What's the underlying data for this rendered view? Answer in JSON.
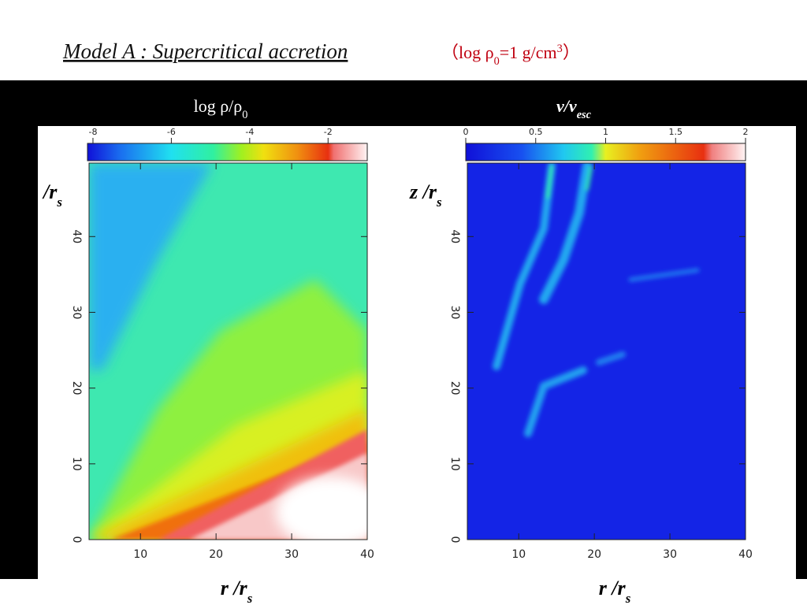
{
  "title": {
    "text": "Model  A : Supercritical accretion",
    "note": [
      "（log ρ",
      "0",
      "=1 g/cm",
      "3",
      "）"
    ]
  },
  "panels": [
    {
      "label": [
        "log ρ/ρ",
        "0"
      ],
      "colorbar": {
        "lim": [
          -8.14,
          -1.0
        ],
        "ticks": [
          -8,
          -6,
          -4,
          -2
        ]
      },
      "ylabel": [
        "/r",
        "s"
      ],
      "xlabel": [
        "r /r",
        "s"
      ],
      "xlim": [
        3.2,
        40
      ],
      "ylim": [
        0,
        49.7
      ],
      "xticks": [
        10,
        20,
        30,
        40
      ],
      "yticks": [
        0,
        10,
        20,
        30,
        40
      ]
    },
    {
      "label": [
        "v/v",
        "esc"
      ],
      "colorbar": {
        "lim": [
          0,
          2
        ],
        "ticks": [
          0,
          0.5,
          1,
          1.5,
          2
        ]
      },
      "ylabel": [
        "z /r",
        "s"
      ],
      "xlabel": [
        "r /r",
        "s"
      ],
      "xlim": [
        3.2,
        40
      ],
      "ylim": [
        0,
        49.7
      ],
      "xticks": [
        10,
        20,
        30,
        40
      ],
      "yticks": [
        0,
        10,
        20,
        30,
        40
      ]
    }
  ]
}
